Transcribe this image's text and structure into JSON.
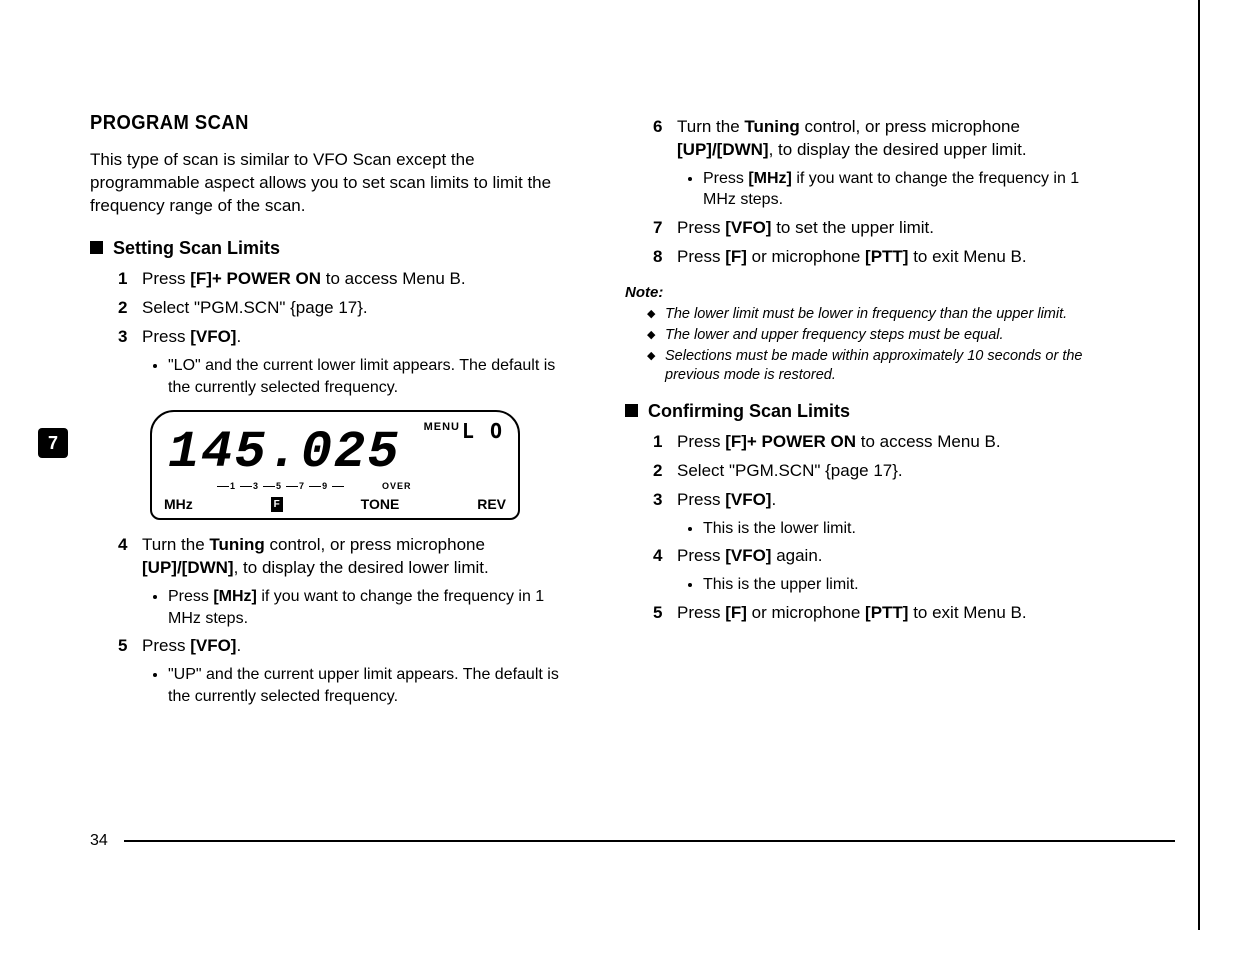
{
  "page_number": "34",
  "tab_number": "7",
  "left": {
    "title": "PROGRAM SCAN",
    "intro": "This type of scan is similar to VFO Scan except the programmable aspect allows you to set scan limits to limit the frequency range of the scan.",
    "sub1": "Setting Scan Limits",
    "s1": {
      "pre": "Press ",
      "b": "[F]+ POWER ON",
      "post": " to access Menu B."
    },
    "s2": "Select \"PGM.SCN\" {page 17}.",
    "s3": {
      "pre": "Press ",
      "b": "[VFO]",
      "post": "."
    },
    "s3b": "\"LO\" and the current lower limit appears.  The default is the currently selected frequency.",
    "s4": {
      "pre": "Turn the ",
      "b1": "Tuning",
      "mid": " control, or press microphone ",
      "b2": "[UP]/[DWN]",
      "post": ", to display the desired lower limit."
    },
    "s4b": {
      "pre": "Press ",
      "b": "[MHz]",
      "post": " if you want to change the frequency in 1 MHz steps."
    },
    "s5": {
      "pre": "Press ",
      "b": "[VFO]",
      "post": "."
    },
    "s5b": "\"UP\" and the current upper limit appears.  The default is the currently selected frequency."
  },
  "lcd": {
    "menu": "MENU",
    "lo": "L O",
    "digits": "145.025",
    "over": "OVER",
    "mhz": "MHz",
    "f": "F",
    "tone": "TONE",
    "rev": "REV"
  },
  "right": {
    "s6": {
      "pre": "Turn the ",
      "b1": "Tuning",
      "mid": " control, or press microphone ",
      "b2": "[UP]/[DWN]",
      "post": ", to display the desired upper limit."
    },
    "s6b": {
      "pre": "Press ",
      "b": "[MHz]",
      "post": " if you want to change the frequency in 1 MHz steps."
    },
    "s7": {
      "pre": "Press ",
      "b": "[VFO]",
      "post": " to set the upper limit."
    },
    "s8": {
      "pre": "Press ",
      "b1": "[F]",
      "mid": " or microphone ",
      "b2": "[PTT]",
      "post": " to exit Menu B."
    },
    "note_head": "Note:",
    "n1": "The lower limit must be lower in frequency than the upper limit.",
    "n2": "The lower and upper frequency steps must be equal.",
    "n3": "Selections must be made within approximately 10 seconds or the previous mode is restored.",
    "sub2": "Confirming Scan Limits",
    "c1": {
      "pre": "Press ",
      "b": "[F]+ POWER ON",
      "post": " to access Menu B."
    },
    "c2": "Select \"PGM.SCN\" {page 17}.",
    "c3": {
      "pre": "Press ",
      "b": "[VFO]",
      "post": "."
    },
    "c3b": "This is the lower limit.",
    "c4": {
      "pre": "Press ",
      "b": "[VFO]",
      "post": " again."
    },
    "c4b": "This is the upper limit.",
    "c5": {
      "pre": "Press ",
      "b1": "[F]",
      "mid": " or microphone ",
      "b2": "[PTT]",
      "post": " to exit Menu B."
    }
  }
}
